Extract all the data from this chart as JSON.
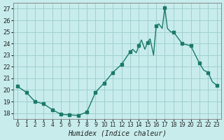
{
  "xlabel": "Humidex (Indice chaleur)",
  "ylabel": "",
  "bg_color": "#c8ecec",
  "line_color": "#1a7a6a",
  "marker_color": "#1a7a6a",
  "grid_color": "#a0d0d0",
  "ylim": [
    17.5,
    27.5
  ],
  "xlim": [
    -0.5,
    23.5
  ],
  "yticks": [
    18,
    19,
    20,
    21,
    22,
    23,
    24,
    25,
    26,
    27
  ],
  "xticks": [
    0,
    1,
    2,
    3,
    4,
    5,
    6,
    7,
    8,
    9,
    10,
    11,
    12,
    13,
    14,
    15,
    16,
    17,
    18,
    19,
    20,
    21,
    22,
    23
  ],
  "x": [
    0,
    1,
    2,
    3,
    4,
    5,
    6,
    7,
    8,
    9,
    10,
    11,
    12,
    13,
    13.3,
    13.7,
    14,
    14.3,
    14.7,
    15,
    15.3,
    15.7,
    16,
    16.3,
    16.7,
    17,
    17.3,
    17.7,
    18,
    19,
    20,
    21,
    21.5,
    22,
    22.5,
    23
  ],
  "y": [
    20.3,
    19.8,
    19.0,
    18.8,
    18.3,
    17.9,
    17.85,
    17.8,
    18.1,
    19.8,
    20.6,
    21.5,
    22.2,
    23.3,
    23.5,
    23.2,
    23.8,
    24.3,
    23.5,
    24.1,
    24.4,
    23.0,
    25.5,
    25.7,
    25.3,
    27.1,
    25.3,
    25.0,
    25.0,
    24.0,
    23.8,
    22.3,
    21.7,
    21.5,
    20.7,
    20.4
  ],
  "marker_x": [
    0,
    1,
    2,
    3,
    4,
    5,
    6,
    7,
    8,
    9,
    10,
    11,
    12,
    13,
    14,
    15,
    16,
    17,
    18,
    19,
    20,
    21,
    22,
    23
  ],
  "marker_y": [
    20.3,
    19.8,
    19.0,
    18.8,
    18.3,
    17.9,
    17.85,
    17.8,
    18.1,
    19.8,
    20.6,
    21.5,
    22.2,
    23.3,
    23.8,
    24.1,
    25.5,
    27.1,
    25.0,
    24.0,
    23.8,
    22.3,
    21.5,
    20.4
  ]
}
